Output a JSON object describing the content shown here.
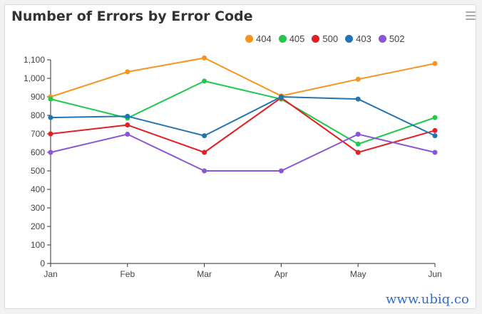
{
  "title": "Number of Errors by Error Code",
  "menu": {
    "icon": "hamburger-menu-icon"
  },
  "watermark": "www.ubiq.co",
  "chart_data": {
    "type": "line",
    "title": "Number of Errors by Error Code",
    "categories": [
      "Jan",
      "Feb",
      "Mar",
      "Apr",
      "May",
      "Jun"
    ],
    "ylim": [
      0,
      1100
    ],
    "y_ticks": [
      0,
      100,
      200,
      300,
      400,
      500,
      600,
      700,
      800,
      900,
      1000,
      1100
    ],
    "y_tick_labels": [
      "0",
      "100",
      "200",
      "300",
      "400",
      "500",
      "600",
      "700",
      "800",
      "900",
      "1,000",
      "1,100"
    ],
    "grid": false,
    "legend_position": "top-right",
    "series": [
      {
        "name": "404",
        "color": "#f7931e",
        "values": [
          900,
          1035,
          1110,
          905,
          995,
          1080
        ]
      },
      {
        "name": "405",
        "color": "#1ec94b",
        "values": [
          888,
          785,
          985,
          888,
          645,
          788
        ]
      },
      {
        "name": "500",
        "color": "#e31e24",
        "values": [
          700,
          748,
          600,
          895,
          600,
          718
        ]
      },
      {
        "name": "403",
        "color": "#2274b3",
        "values": [
          788,
          795,
          690,
          900,
          888,
          690
        ]
      },
      {
        "name": "502",
        "color": "#8a55d6",
        "values": [
          600,
          698,
          500,
          500,
          698,
          600
        ]
      }
    ]
  }
}
